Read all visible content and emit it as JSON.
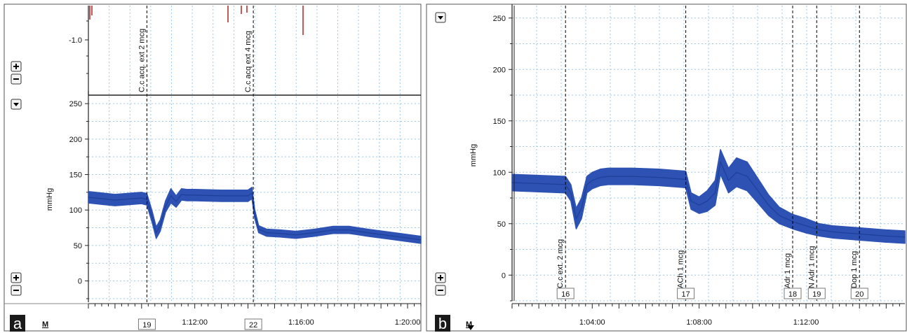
{
  "chart_data": [
    {
      "type": "line",
      "panel_letter": "a",
      "ylabel": "mmHg",
      "top_channel": {
        "ticks": [
          -1.0
        ],
        "tick_labels": [
          "-1.0"
        ]
      },
      "yticks": [
        0,
        50,
        100,
        150,
        200,
        250
      ],
      "ylim": [
        -30,
        260
      ],
      "xlim": [
        68.0,
        80.5
      ],
      "xticks": [
        {
          "t": 72.0,
          "label": "1:12:00"
        },
        {
          "t": 76.0,
          "label": "1:16:00"
        },
        {
          "t": 80.0,
          "label": "1:20:00"
        }
      ],
      "markers": [
        {
          "t": 70.2,
          "label": "C.c acq. ext 2 mcg",
          "num": "19"
        },
        {
          "t": 74.2,
          "label": "C.c acq ext 4 mcg",
          "num": "22"
        }
      ],
      "x_channel_label": "M",
      "grid": true,
      "series": [
        {
          "color": "#2d52b3",
          "x": [
            68.0,
            69.0,
            70.0,
            70.2,
            70.4,
            70.55,
            70.7,
            70.9,
            71.1,
            71.3,
            71.5,
            71.7,
            72.0,
            73.0,
            74.0,
            74.15,
            74.25,
            74.4,
            74.7,
            75.2,
            75.8,
            76.5,
            77.2,
            77.8,
            78.5,
            79.5,
            80.5
          ],
          "y": [
            118,
            114,
            117,
            115,
            90,
            68,
            78,
            105,
            120,
            112,
            122,
            121,
            121,
            120,
            120,
            124,
            95,
            73,
            68,
            67,
            65,
            68,
            72,
            72,
            68,
            63,
            58
          ],
          "band": [
            8,
            8,
            8,
            8,
            8,
            8,
            8,
            8,
            10,
            8,
            8,
            8,
            8,
            8,
            8,
            8,
            6,
            5,
            5,
            5,
            5,
            5,
            5,
            5,
            5,
            5,
            5
          ]
        }
      ]
    },
    {
      "type": "line",
      "panel_letter": "b",
      "ylabel": "mmHg",
      "yticks": [
        0,
        50,
        100,
        150,
        200,
        250
      ],
      "ylim": [
        -25,
        258
      ],
      "xlim": [
        61.0,
        75.7
      ],
      "xticks": [
        {
          "t": 64.0,
          "label": "1:04:00"
        },
        {
          "t": 68.0,
          "label": "1:08:00"
        },
        {
          "t": 72.0,
          "label": "1:12:00"
        }
      ],
      "markers": [
        {
          "t": 63.0,
          "label": "C.c ext. 2 mcg",
          "num": "16"
        },
        {
          "t": 67.5,
          "label": "ACh 1 mcg",
          "num": "17"
        },
        {
          "t": 71.5,
          "label": "Adr 1 mcg",
          "num": "18"
        },
        {
          "t": 72.4,
          "label": "N Adr 1 mcg",
          "num": "19"
        },
        {
          "t": 74.0,
          "label": "Dop 1 mcg",
          "num": "20"
        }
      ],
      "x_channel_label": "M",
      "grid": true,
      "series": [
        {
          "color": "#2d52b3",
          "x": [
            61.0,
            62.0,
            63.0,
            63.2,
            63.4,
            63.6,
            63.8,
            64.0,
            64.3,
            64.6,
            65.5,
            66.5,
            67.5,
            67.7,
            68.0,
            68.3,
            68.6,
            68.8,
            69.1,
            69.4,
            69.8,
            70.2,
            70.6,
            71.0,
            71.5,
            72.0,
            72.5,
            73.0,
            74.0,
            75.0,
            75.7
          ],
          "y": [
            90,
            89,
            88,
            80,
            55,
            65,
            88,
            92,
            95,
            96,
            96,
            95,
            93,
            72,
            68,
            72,
            80,
            110,
            92,
            100,
            96,
            82,
            68,
            58,
            52,
            48,
            44,
            42,
            40,
            38,
            37
          ],
          "band": [
            8,
            8,
            8,
            8,
            10,
            10,
            8,
            8,
            8,
            8,
            8,
            8,
            8,
            8,
            8,
            10,
            12,
            12,
            12,
            14,
            14,
            12,
            10,
            8,
            7,
            7,
            6,
            6,
            6,
            6,
            6
          ]
        }
      ]
    }
  ]
}
